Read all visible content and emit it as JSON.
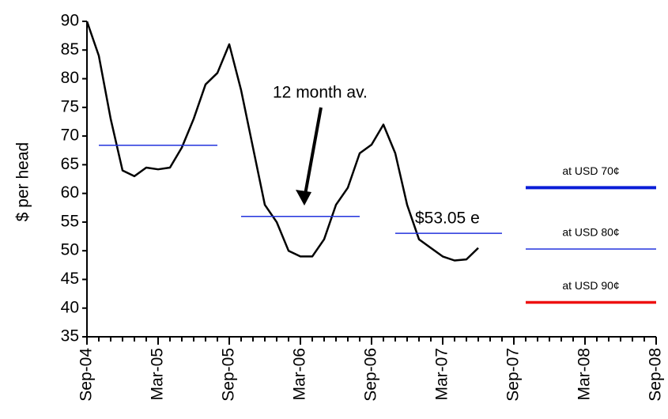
{
  "chart_data": {
    "type": "line",
    "y_label": "$ per head",
    "categories": [
      "Sep-04",
      null,
      null,
      null,
      null,
      null,
      "Mar-05",
      null,
      null,
      null,
      null,
      null,
      "Sep-05",
      null,
      null,
      null,
      null,
      null,
      "Mar-06",
      null,
      null,
      null,
      null,
      null,
      "Sep-06",
      null,
      null,
      null,
      null,
      null,
      "Mar-07",
      null,
      null,
      null,
      null,
      null,
      "Sep-07",
      null,
      null,
      null,
      null,
      null,
      "Mar-08",
      null,
      null,
      null,
      null,
      null,
      "Sep-08"
    ],
    "ylim": [
      35,
      90
    ],
    "yticks": [
      35,
      40,
      45,
      50,
      55,
      60,
      65,
      70,
      75,
      80,
      85,
      90
    ],
    "series": [
      {
        "color": "#000000",
        "width": 2.5,
        "values": [
          90,
          84,
          73,
          64,
          63,
          64.5,
          64.2,
          64.5,
          68,
          73,
          79,
          81,
          86,
          78,
          68,
          58,
          55,
          50,
          49,
          49,
          52,
          58,
          61,
          67,
          68.5,
          72,
          67,
          58,
          52,
          50.5,
          49,
          48.3,
          48.5,
          50.5,
          null,
          null,
          null,
          null,
          null,
          null,
          null,
          null,
          null,
          null,
          null,
          null,
          null,
          null,
          null
        ]
      },
      {
        "color": "#2233dd",
        "width": 1.5,
        "values": [
          null,
          68.4,
          68.4,
          68.4,
          68.4,
          68.4,
          68.4,
          68.4,
          68.4,
          68.4,
          68.4,
          68.4,
          null,
          null,
          null,
          null,
          null,
          null,
          null,
          null,
          null,
          null,
          null,
          null,
          null,
          null,
          null,
          null,
          null,
          null,
          null,
          null,
          null,
          null,
          null,
          null,
          null,
          null,
          null,
          null,
          null,
          null,
          null,
          null,
          null,
          null,
          null,
          null,
          null
        ]
      },
      {
        "color": "#2233dd",
        "width": 1.5,
        "values": [
          null,
          null,
          null,
          null,
          null,
          null,
          null,
          null,
          null,
          null,
          null,
          null,
          null,
          56,
          56,
          56,
          56,
          56,
          56,
          56,
          56,
          56,
          56,
          56,
          null,
          null,
          null,
          null,
          null,
          null,
          null,
          null,
          null,
          null,
          null,
          null,
          null,
          null,
          null,
          null,
          null,
          null,
          null,
          null,
          null,
          null,
          null,
          null,
          null
        ]
      },
      {
        "color": "#2233dd",
        "width": 1.5,
        "values": [
          null,
          null,
          null,
          null,
          null,
          null,
          null,
          null,
          null,
          null,
          null,
          null,
          null,
          null,
          null,
          null,
          null,
          null,
          null,
          null,
          null,
          null,
          null,
          null,
          null,
          null,
          53.05,
          53.05,
          53.05,
          53.05,
          53.05,
          53.05,
          53.05,
          53.05,
          53.05,
          53.05,
          null,
          null,
          null,
          null,
          null,
          null,
          null,
          null,
          null,
          null,
          null,
          null,
          null
        ]
      },
      {
        "name": "at USD 70¢",
        "color": "#0a1ed8",
        "width": 4,
        "values": [
          null,
          null,
          null,
          null,
          null,
          null,
          null,
          null,
          null,
          null,
          null,
          null,
          null,
          null,
          null,
          null,
          null,
          null,
          null,
          null,
          null,
          null,
          null,
          null,
          null,
          null,
          null,
          null,
          null,
          null,
          null,
          null,
          null,
          null,
          null,
          null,
          null,
          61,
          61,
          61,
          61,
          61,
          61,
          61,
          61,
          61,
          61,
          61,
          61
        ]
      },
      {
        "name": "at USD 80¢",
        "color": "#2233dd",
        "width": 1.5,
        "values": [
          null,
          null,
          null,
          null,
          null,
          null,
          null,
          null,
          null,
          null,
          null,
          null,
          null,
          null,
          null,
          null,
          null,
          null,
          null,
          null,
          null,
          null,
          null,
          null,
          null,
          null,
          null,
          null,
          null,
          null,
          null,
          null,
          null,
          null,
          null,
          null,
          null,
          50.3,
          50.3,
          50.3,
          50.3,
          50.3,
          50.3,
          50.3,
          50.3,
          50.3,
          50.3,
          50.3,
          50.3
        ]
      },
      {
        "name": "at USD 90¢",
        "color": "#ee1111",
        "width": 3.5,
        "values": [
          null,
          null,
          null,
          null,
          null,
          null,
          null,
          null,
          null,
          null,
          null,
          null,
          null,
          null,
          null,
          null,
          null,
          null,
          null,
          null,
          null,
          null,
          null,
          null,
          null,
          null,
          null,
          null,
          null,
          null,
          null,
          null,
          null,
          null,
          null,
          null,
          null,
          41,
          41,
          41,
          41,
          41,
          41,
          41,
          41,
          41,
          41,
          41,
          41
        ]
      }
    ],
    "annotations": [
      "12 month av.",
      "$53.05 e"
    ]
  }
}
